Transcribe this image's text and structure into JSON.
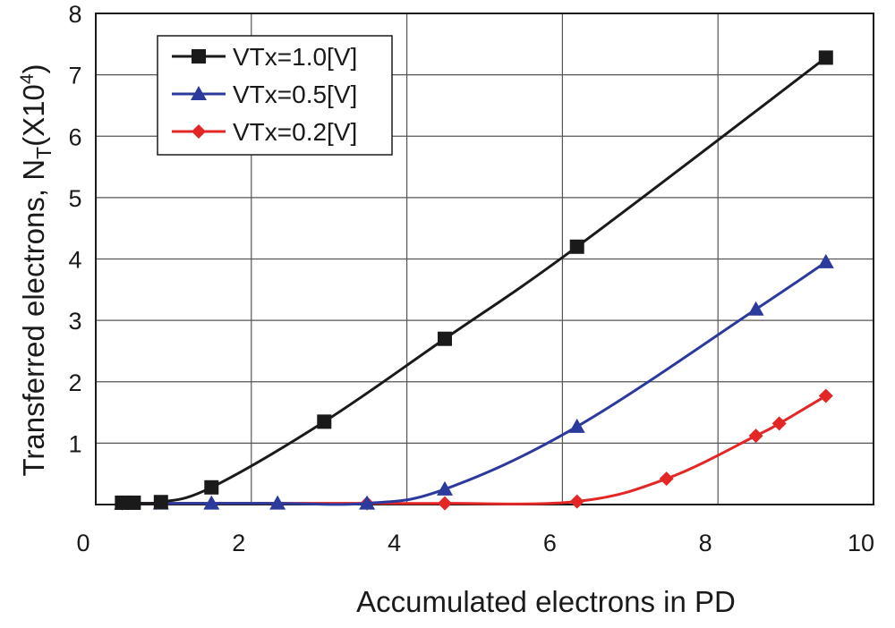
{
  "chart_data": {
    "type": "line",
    "title": "",
    "xlabel": "Accumulated electrons in PD",
    "ylabel": {
      "prefix": "Transferred electrons, N",
      "subscript": "T",
      "suffix_open": "(X10",
      "exponent": "4",
      "suffix_close": ")"
    },
    "xlim": [
      0,
      10
    ],
    "ylim": [
      0,
      8
    ],
    "x_ticks": [
      "0",
      "2",
      "4",
      "6",
      "8",
      "10"
    ],
    "y_ticks": [
      "1",
      "2",
      "3",
      "4",
      "5",
      "6",
      "7",
      "8"
    ],
    "grid": true,
    "legend_position": "top-left",
    "series": [
      {
        "name": "VTx=1.0[V]",
        "color": "#1a1a1a",
        "marker": "square",
        "x": [
          0.05,
          0.2,
          0.55,
          1.2,
          2.65,
          4.2,
          5.9,
          9.1
        ],
        "y": [
          0.03,
          0.03,
          0.04,
          0.28,
          1.35,
          2.7,
          4.2,
          7.28
        ]
      },
      {
        "name": "VTx=0.5[V]",
        "color": "#2b3a9c",
        "marker": "triangle",
        "x": [
          0.05,
          0.15,
          0.55,
          1.2,
          2.05,
          3.2,
          4.2,
          5.9,
          8.2,
          9.1
        ],
        "y": [
          0.02,
          0.02,
          0.02,
          0.02,
          0.02,
          0.02,
          0.25,
          1.27,
          3.18,
          3.95
        ]
      },
      {
        "name": "VTx=0.2[V]",
        "color": "#e32626",
        "marker": "diamond",
        "x": [
          0.05,
          3.2,
          4.2,
          5.9,
          7.05,
          8.2,
          8.5,
          9.1
        ],
        "y": [
          0.02,
          0.02,
          0.02,
          0.05,
          0.42,
          1.12,
          1.32,
          1.77
        ]
      }
    ]
  }
}
